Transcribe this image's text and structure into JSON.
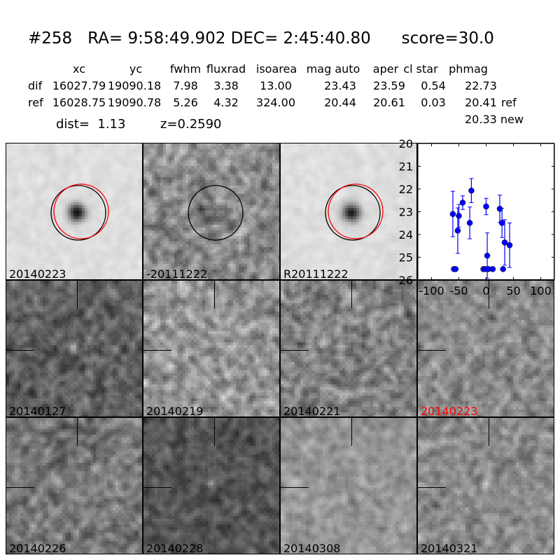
{
  "header": {
    "title": "#258   RA= 9:58:49.902 DEC= 2:45:40.80      score=30.0",
    "columns": [
      "xc",
      "yc",
      "fwhm",
      "fluxrad",
      "isoarea",
      "mag auto",
      "aper",
      "cl star",
      "phmag"
    ],
    "rows": [
      {
        "label": "dif",
        "values": [
          "16027.79",
          "19090.18",
          "7.98",
          "3.38",
          "13.00",
          "23.43",
          "23.59",
          "0.54",
          "22.73"
        ],
        "suffix": ""
      },
      {
        "label": "ref",
        "values": [
          "16028.75",
          "19090.78",
          "5.26",
          "4.32",
          "324.00",
          "20.44",
          "20.61",
          "0.03",
          "20.41"
        ],
        "suffix": "ref"
      }
    ],
    "new_phmag": "20.33 new",
    "dist": "dist=  1.13",
    "z": "z=0.2590"
  },
  "panels": [
    {
      "label": "20140223",
      "kind": "new",
      "label_color": "#000000"
    },
    {
      "label": "-20111222",
      "kind": "diff",
      "label_color": "#000000"
    },
    {
      "label": "R20111222",
      "kind": "ref",
      "label_color": "#000000"
    },
    {
      "label": "20140127",
      "kind": "epoch",
      "label_color": "#000000"
    },
    {
      "label": "20140219",
      "kind": "epoch",
      "label_color": "#000000"
    },
    {
      "label": "20140221",
      "kind": "epoch",
      "label_color": "#000000"
    },
    {
      "label": "20140223",
      "kind": "epoch",
      "label_color": "#ff0000"
    },
    {
      "label": "20140226",
      "kind": "epoch",
      "label_color": "#000000"
    },
    {
      "label": "20140228",
      "kind": "epoch",
      "label_color": "#000000"
    },
    {
      "label": "20140308",
      "kind": "epoch",
      "label_color": "#000000"
    },
    {
      "label": "20140321",
      "kind": "epoch",
      "label_color": "#000000"
    }
  ],
  "colors": {
    "marker": "#0000ff",
    "circle_new": "#ff0000",
    "circle_ref": "#000000",
    "highlight_label": "#ff0000"
  },
  "chart_data": {
    "type": "scatter",
    "xlim": [
      -125,
      125
    ],
    "ylim": [
      26,
      20
    ],
    "y_inverted": true,
    "xticks": [
      -100,
      -50,
      0,
      50,
      100
    ],
    "yticks": [
      20,
      21,
      22,
      23,
      24,
      25,
      26
    ],
    "xtick_labels": [
      "-100",
      "-50",
      "0",
      "50",
      "100"
    ],
    "ytick_labels": [
      "20",
      "21",
      "22",
      "23",
      "24",
      "25",
      "26"
    ],
    "points": [
      {
        "x": -61,
        "y": 23.1,
        "err": 1.0
      },
      {
        "x": -50,
        "y": 23.18,
        "err": 0.5
      },
      {
        "x": -52,
        "y": 23.83,
        "err": 1.0
      },
      {
        "x": -43,
        "y": 22.6,
        "err": 0.3
      },
      {
        "x": -27,
        "y": 22.07,
        "err": 0.53
      },
      {
        "x": -30,
        "y": 23.49,
        "err": 0.7
      },
      {
        "x": 0,
        "y": 22.77,
        "err": 0.36
      },
      {
        "x": 2,
        "y": 24.93,
        "err": 1.0
      },
      {
        "x": 25,
        "y": 22.87,
        "err": 0.6
      },
      {
        "x": 29,
        "y": 23.49,
        "err": 0.64
      },
      {
        "x": 34,
        "y": 24.35,
        "err": 1.0
      },
      {
        "x": 43,
        "y": 24.47,
        "err": 0.98
      },
      {
        "x": -59,
        "y": 25.52,
        "err": 0.05
      },
      {
        "x": -56,
        "y": 25.52,
        "err": 0.05
      },
      {
        "x": -5,
        "y": 25.52,
        "err": 0.05
      },
      {
        "x": -2,
        "y": 25.52,
        "err": 0.05
      },
      {
        "x": 4,
        "y": 25.52,
        "err": 0.05
      },
      {
        "x": 12,
        "y": 25.52,
        "err": 0.05
      },
      {
        "x": 31,
        "y": 25.52,
        "err": 0.05
      }
    ]
  }
}
